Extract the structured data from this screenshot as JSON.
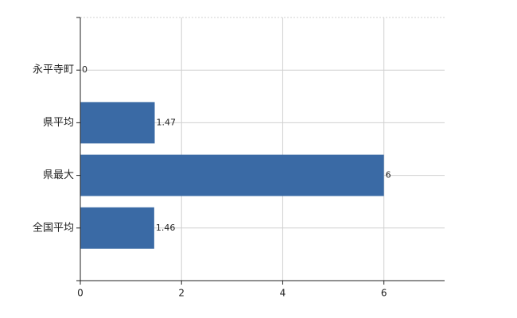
{
  "chart_data": {
    "type": "bar",
    "orientation": "horizontal",
    "categories": [
      "永平寺町",
      "県平均",
      "県最大",
      "全国平均"
    ],
    "values": [
      0,
      1.47,
      6,
      1.46
    ],
    "color": "#3a6aa5",
    "xlim": [
      0,
      7.2
    ],
    "xticks": [
      0,
      2,
      4,
      6
    ],
    "grid": true
  }
}
